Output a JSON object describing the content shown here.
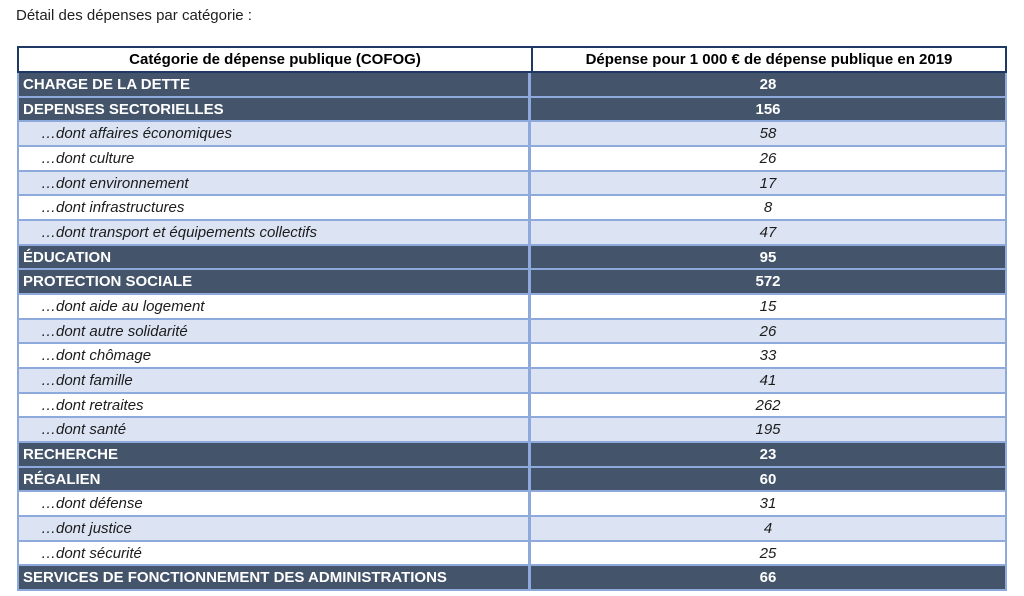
{
  "title": "Détail des dépenses par catégorie :",
  "colors": {
    "dark_row": "#44546A",
    "light_row": "#DCE4F4",
    "row_border": "#8EA9DB",
    "header_border": "#1F3864"
  },
  "table": {
    "headers": [
      "Catégorie de dépense publique (COFOG)",
      "Dépense pour 1 000 € de dépense publique en 2019"
    ],
    "rows": [
      {
        "kind": "category",
        "label": "CHARGE DE LA DETTE",
        "value": "28"
      },
      {
        "kind": "category",
        "label": "DEPENSES SECTORIELLES",
        "value": "156"
      },
      {
        "kind": "sub",
        "label": "…dont affaires économiques",
        "value": "58"
      },
      {
        "kind": "sub",
        "label": "…dont culture",
        "value": "26"
      },
      {
        "kind": "sub",
        "label": "…dont environnement",
        "value": "17"
      },
      {
        "kind": "sub",
        "label": "…dont infrastructures",
        "value": "8"
      },
      {
        "kind": "sub",
        "label": "…dont transport et équipements collectifs",
        "value": "47"
      },
      {
        "kind": "category",
        "label": "ÉDUCATION",
        "value": "95"
      },
      {
        "kind": "category",
        "label": "PROTECTION SOCIALE",
        "value": "572"
      },
      {
        "kind": "sub",
        "label": "…dont aide au logement",
        "value": "15"
      },
      {
        "kind": "sub",
        "label": "…dont autre solidarité",
        "value": "26"
      },
      {
        "kind": "sub",
        "label": "…dont chômage",
        "value": "33"
      },
      {
        "kind": "sub",
        "label": "…dont famille",
        "value": "41"
      },
      {
        "kind": "sub",
        "label": "…dont retraites",
        "value": "262"
      },
      {
        "kind": "sub",
        "label": "…dont santé",
        "value": "195"
      },
      {
        "kind": "category",
        "label": "RECHERCHE",
        "value": "23"
      },
      {
        "kind": "category",
        "label": "RÉGALIEN",
        "value": "60"
      },
      {
        "kind": "sub",
        "label": "…dont défense",
        "value": "31"
      },
      {
        "kind": "sub",
        "label": "…dont justice",
        "value": "4"
      },
      {
        "kind": "sub",
        "label": "…dont sécurité",
        "value": "25"
      },
      {
        "kind": "category",
        "label": "SERVICES DE FONCTIONNEMENT DES ADMINISTRATIONS",
        "value": "66"
      }
    ]
  },
  "chart_data": {
    "type": "table",
    "title": "Détail des dépenses par catégorie :",
    "columns": [
      "Catégorie de dépense publique (COFOG)",
      "Dépense pour 1 000 € de dépense publique en 2019"
    ],
    "categories": [
      "CHARGE DE LA DETTE",
      "DEPENSES SECTORIELLES",
      "…dont affaires économiques",
      "…dont culture",
      "…dont environnement",
      "…dont infrastructures",
      "…dont transport et équipements collectifs",
      "ÉDUCATION",
      "PROTECTION SOCIALE",
      "…dont aide au logement",
      "…dont autre solidarité",
      "…dont chômage",
      "…dont famille",
      "…dont retraites",
      "…dont santé",
      "RECHERCHE",
      "RÉGALIEN",
      "…dont défense",
      "…dont justice",
      "…dont sécurité",
      "SERVICES DE FONCTIONNEMENT DES ADMINISTRATIONS"
    ],
    "values": [
      28,
      156,
      58,
      26,
      17,
      8,
      47,
      95,
      572,
      15,
      26,
      33,
      41,
      262,
      195,
      23,
      60,
      31,
      4,
      25,
      66
    ]
  }
}
